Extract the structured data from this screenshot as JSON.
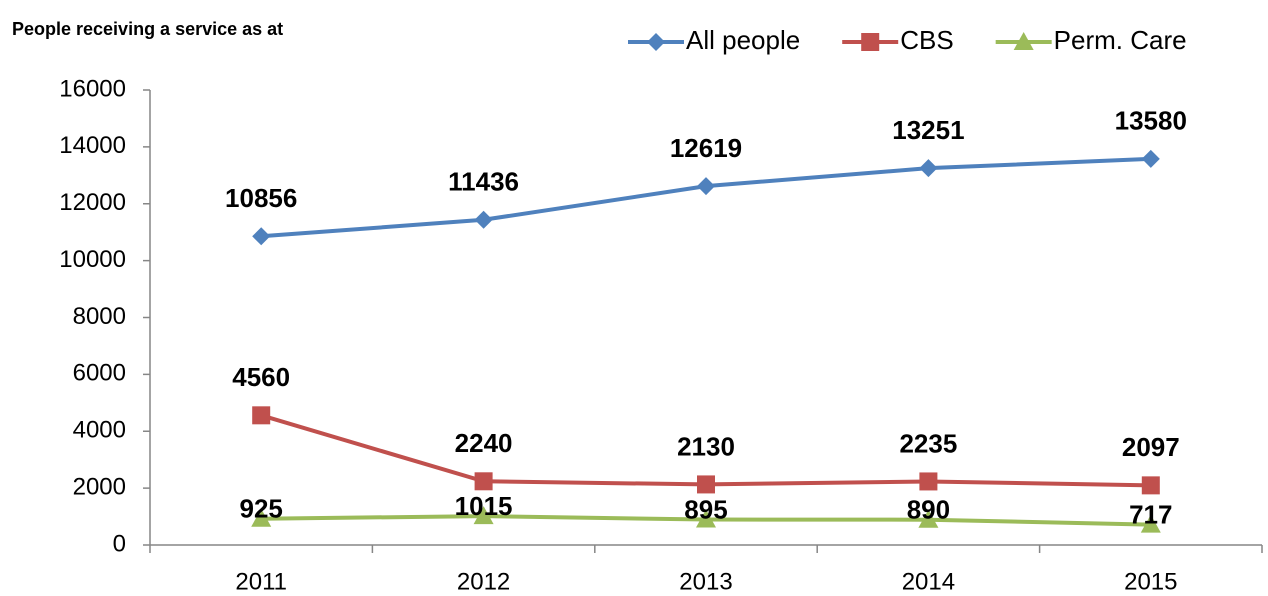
{
  "chart_data": {
    "type": "line",
    "title": "People receiving a service as at",
    "categories": [
      "2011",
      "2012",
      "2013",
      "2014",
      "2015"
    ],
    "series": [
      {
        "name": "All people",
        "color": "#4f81bd",
        "marker": "diamond",
        "values": [
          10856,
          11436,
          12619,
          13251,
          13580
        ]
      },
      {
        "name": "CBS",
        "color": "#c0504d",
        "marker": "square",
        "values": [
          4560,
          2240,
          2130,
          2235,
          2097
        ]
      },
      {
        "name": "Perm. Care",
        "color": "#9bbb59",
        "marker": "triangle",
        "values": [
          925,
          1015,
          895,
          890,
          717
        ]
      }
    ],
    "ylim": [
      0,
      16000
    ],
    "yticks": [
      0,
      2000,
      4000,
      6000,
      8000,
      10000,
      12000,
      14000,
      16000
    ],
    "grid": false,
    "legend": "top-right",
    "data_labels": true
  }
}
